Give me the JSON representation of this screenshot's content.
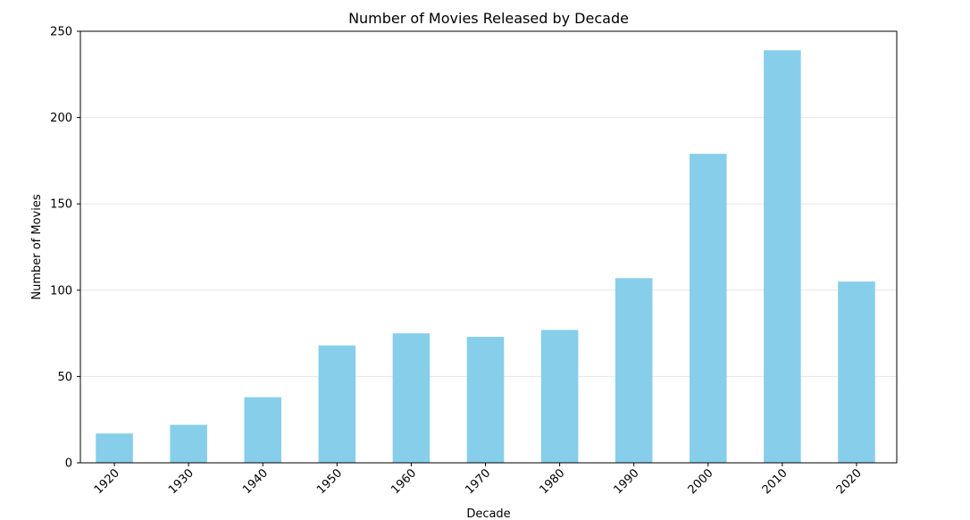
{
  "chart_data": {
    "type": "bar",
    "title": "Number of Movies Released by Decade",
    "xlabel": "Decade",
    "ylabel": "Number of Movies",
    "categories": [
      "1920",
      "1930",
      "1940",
      "1950",
      "1960",
      "1970",
      "1980",
      "1990",
      "2000",
      "2010",
      "2020"
    ],
    "values": [
      17,
      22,
      38,
      68,
      75,
      73,
      77,
      107,
      179,
      239,
      105
    ],
    "ylim": [
      0,
      250
    ],
    "yticks": [
      0,
      50,
      100,
      150,
      200,
      250
    ],
    "grid": "y",
    "bar_color": "#87CEEB",
    "xtick_rotation_deg": 45
  }
}
